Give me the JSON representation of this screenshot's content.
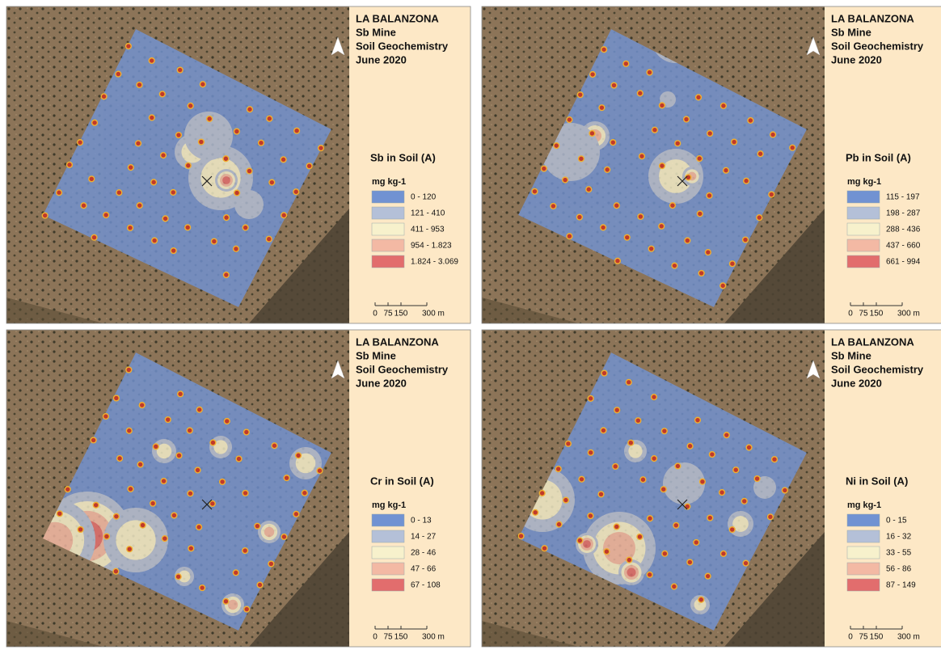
{
  "panels": [
    {
      "title": [
        "LA BALANZONA",
        "Sb Mine",
        "Soil Geochemistry",
        "June 2020"
      ],
      "legend": {
        "title": "Sb in Soil (A)",
        "unit": "mg kg-1",
        "classes": [
          {
            "label": "0 - 120",
            "color": "#7192d2"
          },
          {
            "label": "121 - 410",
            "color": "#b4c0d8"
          },
          {
            "label": "411 - 953",
            "color": "#f7f1cc"
          },
          {
            "label": "954 - 1.823",
            "color": "#f3b9a4"
          },
          {
            "label": "1.824 - 3.069",
            "color": "#e26d6d"
          }
        ]
      },
      "scale": [
        "0",
        "75",
        "150",
        "300 m"
      ]
    },
    {
      "title": [
        "LA BALANZONA",
        "Sb Mine",
        "Soil Geochemistry",
        "June 2020"
      ],
      "legend": {
        "title": "Pb in Soil (A)",
        "unit": "mg kg-1",
        "classes": [
          {
            "label": "115 - 197",
            "color": "#7192d2"
          },
          {
            "label": "198 - 287",
            "color": "#b4c0d8"
          },
          {
            "label": "288 - 436",
            "color": "#f7f1cc"
          },
          {
            "label": "437 - 660",
            "color": "#f3b9a4"
          },
          {
            "label": "661 - 994",
            "color": "#e26d6d"
          }
        ]
      },
      "scale": [
        "0",
        "75",
        "150",
        "300 m"
      ]
    },
    {
      "title": [
        "LA BALANZONA",
        "Sb Mine",
        "Soil Geochemistry",
        "June 2020"
      ],
      "legend": {
        "title": "Cr in Soil (A)",
        "unit": "mg kg-1",
        "classes": [
          {
            "label": "0 - 13",
            "color": "#7192d2"
          },
          {
            "label": "14 - 27",
            "color": "#b4c0d8"
          },
          {
            "label": "28 - 46",
            "color": "#f7f1cc"
          },
          {
            "label": "47 - 66",
            "color": "#f3b9a4"
          },
          {
            "label": "67 - 108",
            "color": "#e26d6d"
          }
        ]
      },
      "scale": [
        "0",
        "75",
        "150",
        "300 m"
      ]
    },
    {
      "title": [
        "LA BALANZONA",
        "Sb Mine",
        "Soil Geochemistry",
        "June 2020"
      ],
      "legend": {
        "title": "Ni in Soil (A)",
        "unit": "mg kg-1",
        "classes": [
          {
            "label": "0 - 15",
            "color": "#7192d2"
          },
          {
            "label": "16 - 32",
            "color": "#b4c0d8"
          },
          {
            "label": "33 - 55",
            "color": "#f7f1cc"
          },
          {
            "label": "56 - 86",
            "color": "#f3b9a4"
          },
          {
            "label": "87 - 149",
            "color": "#e26d6d"
          }
        ]
      },
      "scale": [
        "0",
        "75",
        "150",
        "300 m"
      ]
    }
  ]
}
